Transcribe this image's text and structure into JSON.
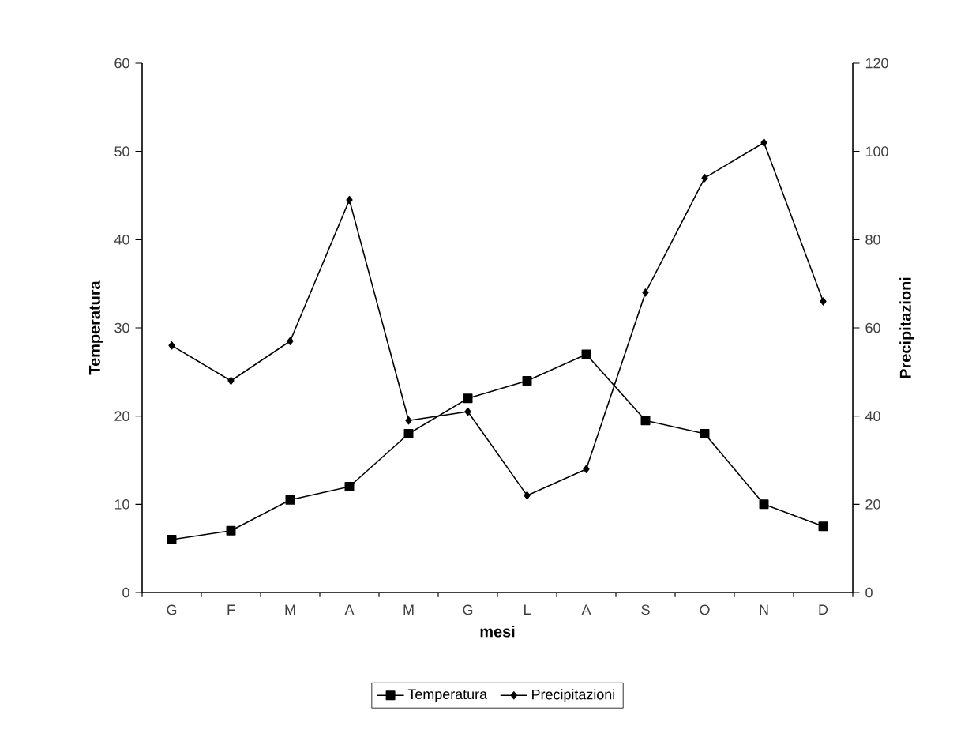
{
  "chart_data": {
    "type": "line",
    "xlabel": "mesi",
    "ylabel": "Temperatura",
    "y2label": "Precipitazioni",
    "categories": [
      "G",
      "F",
      "M",
      "A",
      "M",
      "G",
      "L",
      "A",
      "S",
      "O",
      "N",
      "D"
    ],
    "series": [
      {
        "name": "Temperatura",
        "color": "#000000",
        "marker": "square",
        "values": [
          6,
          7,
          10.5,
          12,
          18,
          22,
          24,
          27,
          19.5,
          18,
          10,
          7.5
        ]
      },
      {
        "name": "Precipitazioni",
        "color": "#000000",
        "marker": "diamond",
        "axis": "y2",
        "values": [
          56,
          48,
          57,
          89,
          39,
          41,
          22,
          28,
          68,
          94,
          102,
          66
        ]
      }
    ],
    "ylim": [
      0,
      60
    ],
    "yticks": [
      0,
      10,
      20,
      30,
      40,
      50,
      60
    ],
    "y2lim": [
      0,
      120
    ],
    "y2ticks": [
      0,
      20,
      40,
      60,
      80,
      100,
      120
    ],
    "grid": false,
    "legend": "bottom"
  }
}
